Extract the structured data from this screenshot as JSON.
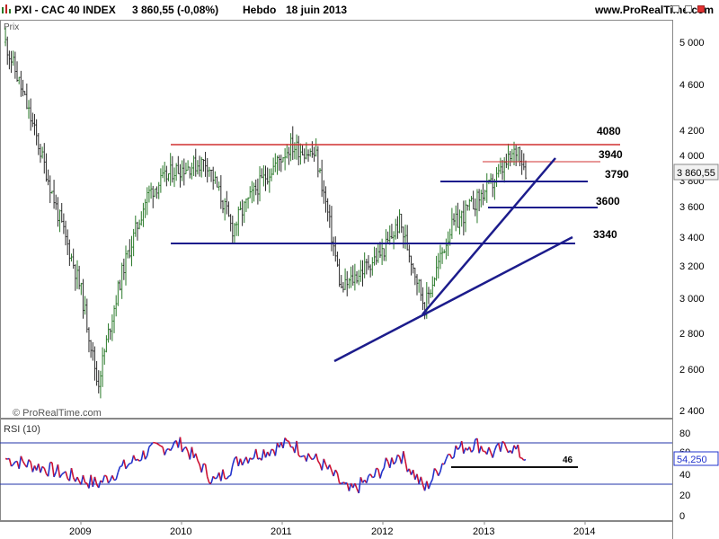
{
  "header": {
    "symbol": "PXI - CAC 40 INDEX",
    "last_value": "3 860,55 (-0,08%)",
    "period": "Hebdo",
    "date": "18 juin 2013",
    "site": "www.ProRealTime.com"
  },
  "price_panel": {
    "label": "Prix",
    "watermark": "© ProRealTime.com",
    "current_value_label": "3 860,55",
    "y_ticks": [
      "5 000",
      "4 600",
      "4 200",
      "4 000",
      "3 800",
      "3 600",
      "3 400",
      "3 200",
      "3 000",
      "2 800",
      "2 600",
      "2 400"
    ],
    "annotations": [
      "4080",
      "3940",
      "3790",
      "3600",
      "3340"
    ]
  },
  "rsi_panel": {
    "label": "RSI (10)",
    "current_value_label": "54,250",
    "y_ticks": [
      "80",
      "60",
      "40",
      "20",
      "0"
    ],
    "annotation": "46"
  },
  "x_axis": {
    "labels": [
      "2009",
      "2010",
      "2011",
      "2012",
      "2013",
      "2014"
    ]
  },
  "colors": {
    "bull_bar": "#2a7a2a",
    "bear_bar": "#2a2a2a",
    "resistance": "#d03030",
    "support": "#1c1c8c",
    "rsi_up": "#2233cc",
    "rsi_down": "#cc1133"
  },
  "chart_data": [
    {
      "type": "ohlc",
      "title": "PXI - CAC 40 INDEX",
      "period": "weekly",
      "ylim": [
        2400,
        5200
      ],
      "x": [
        "2008-04",
        "2008-07",
        "2008-10",
        "2009-01",
        "2009-03",
        "2009-06",
        "2009-09",
        "2009-12",
        "2010-04",
        "2010-07",
        "2010-10",
        "2011-02",
        "2011-05",
        "2011-08",
        "2011-10",
        "2012-01",
        "2012-03",
        "2012-06",
        "2012-09",
        "2012-12",
        "2013-02",
        "2013-05",
        "2013-06"
      ],
      "close": [
        5000,
        4300,
        3600,
        3050,
        2520,
        3180,
        3700,
        3880,
        3950,
        3450,
        3750,
        4080,
        4000,
        3050,
        3150,
        3300,
        3500,
        2950,
        3450,
        3640,
        3780,
        4060,
        3860
      ],
      "levels": [
        {
          "label": "4080",
          "value": 4080,
          "style": "resistance"
        },
        {
          "label": "3940",
          "value": 3940,
          "style": "minor resistance"
        },
        {
          "label": "3790",
          "value": 3790,
          "style": "support"
        },
        {
          "label": "3600",
          "value": 3600,
          "style": "support"
        },
        {
          "label": "3340",
          "value": 3340,
          "style": "support"
        }
      ],
      "trendlines": [
        {
          "from": [
            "2011-08",
            2650
          ],
          "to": [
            "2013-08",
            3400
          ]
        },
        {
          "from": [
            "2012-06",
            2915
          ],
          "to": [
            "2013-08",
            3980
          ]
        }
      ]
    },
    {
      "type": "line",
      "title": "RSI (10)",
      "ylim": [
        0,
        90
      ],
      "reference_lines": [
        70,
        30
      ],
      "x": [
        "2008-04",
        "2008-09",
        "2009-03",
        "2009-09",
        "2010-01",
        "2010-05",
        "2010-08",
        "2011-02",
        "2011-06",
        "2011-09",
        "2011-12",
        "2012-03",
        "2012-06",
        "2012-09",
        "2012-12",
        "2013-02",
        "2013-04",
        "2013-06"
      ],
      "values": [
        55,
        45,
        30,
        62,
        70,
        32,
        55,
        70,
        48,
        22,
        38,
        60,
        25,
        62,
        70,
        60,
        68,
        54
      ],
      "annotation_line": {
        "label": "46",
        "value": 46
      }
    }
  ]
}
